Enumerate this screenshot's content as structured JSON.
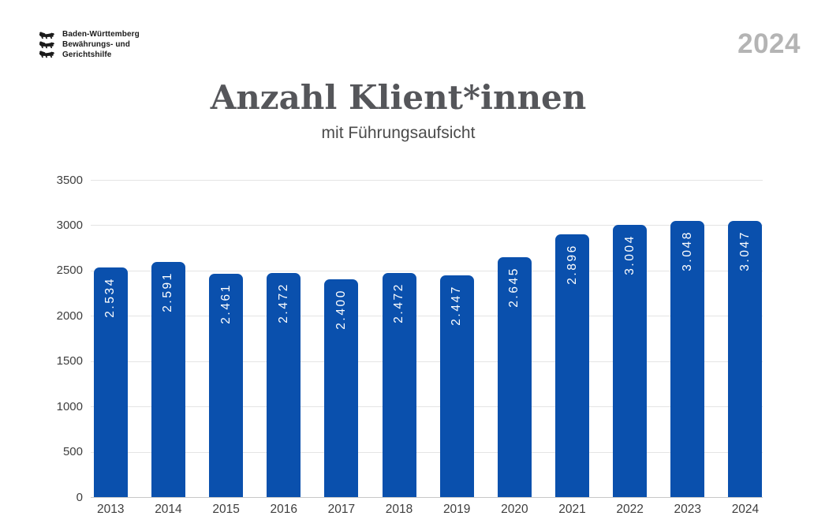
{
  "header": {
    "logo": {
      "icon": "bw-three-lions",
      "lines": [
        "Baden-Württemberg",
        "Bewährungs- und",
        "Gerichtshilfe"
      ]
    },
    "year_badge": "2024"
  },
  "title": "Anzahl Klient*innen",
  "subtitle": "mit Führungsaufsicht",
  "colors": {
    "bar": "#0a50ad",
    "bar_value_text": "#ffffff",
    "title_text": "#55565a",
    "subtitle_text": "#4b4b4b",
    "year_badge_text": "#b4b4b4",
    "axis_text": "#3e3e3e",
    "gridline": "#e4e4e4",
    "baseline": "#c8c8c8",
    "logo_text": "#1a1a1a"
  },
  "chart_data": {
    "type": "bar",
    "title": "Anzahl Klient*innen",
    "subtitle": "mit Führungsaufsicht",
    "categories": [
      "2013",
      "2014",
      "2015",
      "2016",
      "2017",
      "2018",
      "2019",
      "2020",
      "2021",
      "2022",
      "2023",
      "2024"
    ],
    "values": [
      2534,
      2591,
      2461,
      2472,
      2400,
      2472,
      2447,
      2645,
      2896,
      3004,
      3048,
      3047
    ],
    "value_labels": [
      "2.534",
      "2.591",
      "2.461",
      "2.472",
      "2.400",
      "2.472",
      "2.447",
      "2.645",
      "2.896",
      "3.004",
      "3.048",
      "3.047"
    ],
    "xlabel": "",
    "ylabel": "",
    "ylim": [
      0,
      3500
    ],
    "yticks": [
      3500,
      3000,
      2500,
      2000,
      1500,
      1000,
      500,
      0
    ],
    "grid": true,
    "legend": "none",
    "value_label_rotation": -90
  }
}
